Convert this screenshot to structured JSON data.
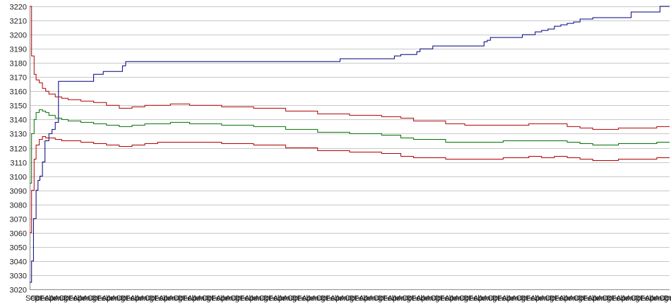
{
  "chart_data": {
    "type": "line",
    "title": "",
    "xlabel": "",
    "ylabel": "",
    "ylim": [
      3020,
      3220
    ],
    "y_ticks": [
      3020,
      3030,
      3040,
      3050,
      3060,
      3070,
      3080,
      3090,
      3100,
      3110,
      3120,
      3130,
      3140,
      3150,
      3160,
      3170,
      3180,
      3190,
      3200,
      3210,
      3220
    ],
    "x_tick_labels": [
      "Sep",
      "Oct",
      "Dec",
      "Feb",
      "Apr",
      "Jun",
      "Aug",
      "Oct",
      "Dec",
      "Feb",
      "Apr",
      "Jun",
      "Aug",
      "Oct",
      "Dec",
      "Feb",
      "Apr",
      "Jun",
      "Aug",
      "Oct",
      "Dec",
      "Feb",
      "Apr",
      "Jun",
      "Aug",
      "Oct",
      "Dec",
      "Feb",
      "Apr",
      "Jun",
      "Aug",
      "Oct",
      "Dec",
      "Feb",
      "Apr",
      "Jun",
      "Aug",
      "Oct",
      "Dec",
      "Feb",
      "Apr",
      "Jun",
      "Aug",
      "Oct",
      "Dec",
      "Feb",
      "Apr",
      "Jun",
      "Aug",
      "Oct",
      "Dec",
      "Feb",
      "Apr",
      "Jun",
      "Aug",
      "Oct",
      "Dec",
      "Feb",
      "Apr",
      "Jun",
      "Aug",
      "Oct",
      "Dec",
      "Feb",
      "Apr",
      "Jun",
      "Aug",
      "Oct",
      "Dec",
      "Feb",
      "Apr",
      "Jun",
      "Aug",
      "Oct",
      "Dec",
      "Feb",
      "Apr",
      "Jun",
      "Aug",
      "Oct",
      "Dec",
      "Feb",
      "Apr",
      "Jun",
      "Aug",
      "Oct",
      "Dec",
      "Feb",
      "Apr",
      "Jun",
      "Aug",
      "Oct",
      "Dec",
      "Feb",
      "Apr",
      "Jun",
      "Aug",
      "Oct",
      "Dec",
      "Feb",
      "Apr",
      "Jun",
      "Aug",
      "Oct",
      "Dec",
      "Feb",
      "Apr",
      "Jun",
      "Aug",
      "Oct",
      "Dec",
      "Feb",
      "Apr",
      "Jun",
      "Aug",
      "Oct",
      "Dec",
      "Feb",
      "Apr",
      "Jun",
      "Aug",
      "Oct",
      "Dec",
      "Feb",
      "Apr",
      "Jun",
      "Aug",
      "Oct",
      "Dec",
      "Feb",
      "Apr",
      "Jun",
      "Aug",
      "Oct",
      "Dec"
    ],
    "x_range": [
      0,
      100
    ],
    "grid": "horizontal",
    "legend": "none",
    "series": [
      {
        "color": "#000080",
        "x": [
          0,
          0.3,
          0.6,
          1.0,
          1.3,
          1.6,
          2.0,
          2.4,
          3.0,
          3.5,
          4.0,
          4.5,
          6.0,
          9.0,
          10.0,
          11.5,
          14.0,
          14.5,
          15.0,
          30.0,
          48.0,
          48.5,
          56.0,
          57.0,
          58.0,
          60.0,
          60.5,
          61.0,
          63.0,
          70.0,
          71.0,
          71.5,
          72.0,
          76.0,
          77.0,
          79.0,
          80.0,
          81.0,
          82.0,
          83.0,
          84.0,
          85.0,
          86.0,
          88.0,
          94.0,
          97.5,
          98.5,
          100.0
        ],
        "y": [
          3025,
          3040,
          3070,
          3090,
          3097,
          3100,
          3110,
          3125,
          3130,
          3133,
          3138,
          3167,
          3167,
          3167,
          3172,
          3174,
          3174,
          3178,
          3181,
          3181,
          3181,
          3183,
          3183,
          3185,
          3186,
          3186,
          3188,
          3190,
          3192,
          3192,
          3195,
          3196,
          3198,
          3198,
          3200,
          3202,
          3203,
          3204,
          3206,
          3207,
          3208,
          3209,
          3211,
          3212,
          3216,
          3216,
          3220,
          3220
        ]
      },
      {
        "color": "#b00000",
        "x": [
          0,
          0.3,
          0.7,
          1.0,
          1.5,
          2.0,
          2.5,
          3.0,
          4.0,
          5.0,
          6.0,
          8.0,
          10.0,
          12.0,
          14.0,
          16.0,
          18.0,
          20.0,
          22.0,
          25.0,
          30.0,
          35.0,
          40.0,
          45.0,
          50.0,
          55.0,
          58.0,
          60.0,
          63.0,
          65.0,
          68.0,
          70.0,
          74.0,
          78.0,
          80.0,
          82.0,
          84.0,
          86.0,
          88.0,
          90.0,
          92.0,
          94.0,
          96.0,
          98.0,
          100.0
        ],
        "y": [
          3220,
          3185,
          3172,
          3168,
          3166,
          3162,
          3160,
          3158,
          3156,
          3155,
          3154,
          3153,
          3152,
          3150,
          3148,
          3149,
          3150,
          3150,
          3151,
          3150,
          3149,
          3148,
          3146,
          3144,
          3143,
          3142,
          3141,
          3139,
          3139,
          3137,
          3136,
          3136,
          3136,
          3137,
          3137,
          3137,
          3135,
          3134,
          3133,
          3133,
          3134,
          3134,
          3134,
          3135,
          3135
        ]
      },
      {
        "color": "#007000",
        "x": [
          0,
          0.3,
          0.7,
          1.0,
          1.5,
          2.0,
          2.5,
          3.0,
          4.0,
          5.0,
          6.0,
          8.0,
          10.0,
          12.0,
          14.0,
          16.0,
          18.0,
          20.0,
          22.0,
          25.0,
          30.0,
          35.0,
          40.0,
          45.0,
          50.0,
          55.0,
          58.0,
          60.0,
          63.0,
          65.0,
          68.0,
          70.0,
          74.0,
          78.0,
          80.0,
          82.0,
          84.0,
          86.0,
          88.0,
          90.0,
          92.0,
          94.0,
          96.0,
          98.0,
          100.0
        ],
        "y": [
          3095,
          3130,
          3140,
          3145,
          3147,
          3146,
          3145,
          3143,
          3141,
          3140,
          3139,
          3138,
          3137,
          3136,
          3135,
          3136,
          3137,
          3137,
          3138,
          3137,
          3136,
          3135,
          3133,
          3131,
          3130,
          3129,
          3127,
          3126,
          3126,
          3124,
          3124,
          3124,
          3125,
          3125,
          3125,
          3125,
          3124,
          3123,
          3122,
          3122,
          3123,
          3123,
          3123,
          3124,
          3124
        ]
      },
      {
        "color": "#b00000",
        "x": [
          0,
          0.3,
          0.7,
          1.0,
          1.5,
          2.0,
          2.5,
          3.0,
          4.0,
          5.0,
          6.0,
          8.0,
          10.0,
          12.0,
          14.0,
          16.0,
          18.0,
          20.0,
          22.0,
          25.0,
          30.0,
          35.0,
          40.0,
          45.0,
          50.0,
          55.0,
          58.0,
          60.0,
          63.0,
          65.0,
          68.0,
          70.0,
          74.0,
          78.0,
          80.0,
          82.0,
          84.0,
          86.0,
          88.0,
          90.0,
          92.0,
          94.0,
          96.0,
          98.0,
          100.0
        ],
        "y": [
          3060,
          3090,
          3112,
          3122,
          3126,
          3128,
          3127,
          3127,
          3126,
          3125,
          3125,
          3124,
          3123,
          3122,
          3121,
          3122,
          3123,
          3124,
          3124,
          3124,
          3123,
          3122,
          3120,
          3118,
          3117,
          3116,
          3114,
          3113,
          3113,
          3112,
          3112,
          3112,
          3113,
          3114,
          3113,
          3114,
          3113,
          3112,
          3111,
          3111,
          3112,
          3112,
          3112,
          3113,
          3113
        ]
      }
    ]
  }
}
